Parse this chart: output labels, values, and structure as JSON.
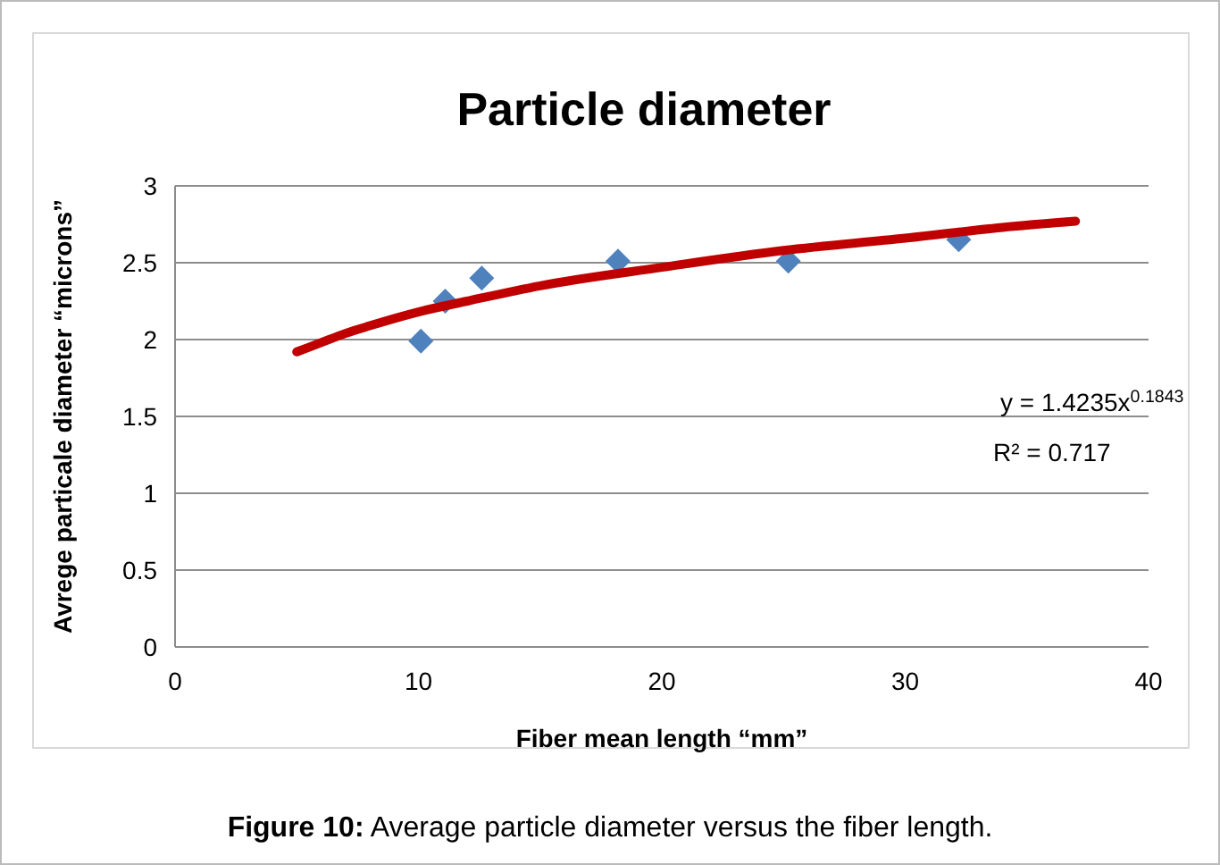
{
  "chart_data": {
    "type": "scatter",
    "title": "Particle diameter",
    "xlabel": "Fiber mean length  “mm”",
    "ylabel": "Avrege particale diameter “microns”",
    "xlim": [
      0,
      40
    ],
    "xticks": [
      0,
      10,
      20,
      30,
      40
    ],
    "ylim": [
      0,
      3
    ],
    "yticks": [
      0,
      0.5,
      1,
      1.5,
      2,
      2.5,
      3
    ],
    "grid": "y",
    "series": [
      {
        "color": "#4f81bd",
        "marker": "diamond",
        "x": [
          10.1,
          11.1,
          12.6,
          18.2,
          25.2,
          32.2
        ],
        "values": [
          1.99,
          2.25,
          2.4,
          2.51,
          2.51,
          2.65
        ]
      },
      {
        "type": "line",
        "color": "#c00000",
        "marker": "none",
        "line_style": "solid",
        "x": [
          5,
          6,
          7,
          8,
          10,
          12,
          15,
          20,
          25,
          30,
          34,
          37
        ],
        "values": [
          1.92,
          1.98,
          2.04,
          2.09,
          2.18,
          2.25,
          2.35,
          2.47,
          2.58,
          2.66,
          2.73,
          2.77
        ]
      }
    ],
    "annotations": [
      "y = 1.4235x$^{0.1843}$",
      "R² = 0.717",
      "Figure 10: Average particle diameter versus the fiber length."
    ]
  }
}
